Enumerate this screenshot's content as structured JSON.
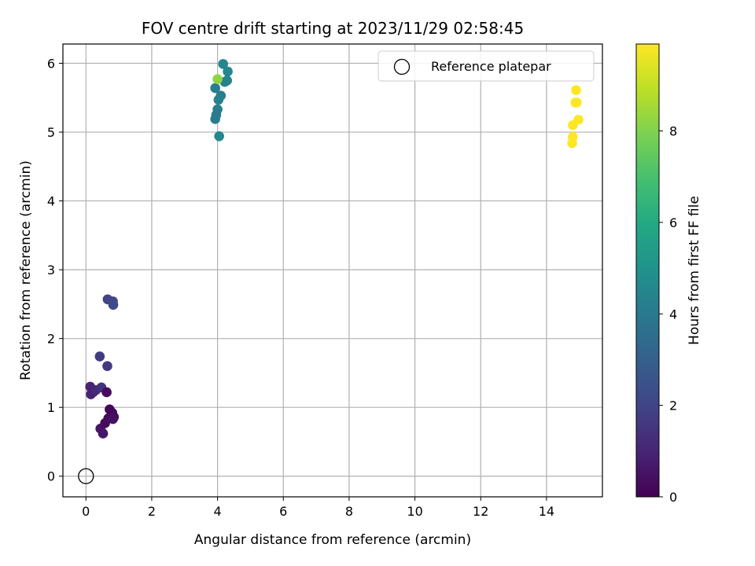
{
  "chart_data": {
    "type": "scatter",
    "title": "FOV centre drift starting at 2023/11/29 02:58:45",
    "xlabel": "Angular distance from reference (arcmin)",
    "ylabel": "Rotation from reference (arcmin)",
    "xlim": [
      -0.7,
      15.7
    ],
    "ylim": [
      -0.3,
      6.28
    ],
    "xticks": [
      0,
      2,
      4,
      6,
      8,
      10,
      12,
      14
    ],
    "yticks": [
      0,
      1,
      2,
      3,
      4,
      5,
      6
    ],
    "grid": true,
    "legend": {
      "placement": "top-right",
      "entries": [
        "Reference platepar"
      ]
    },
    "reference_point": {
      "x": 0,
      "y": 0,
      "marker": "hollow-circle",
      "edge_color": "#000000"
    },
    "colorbar": {
      "label": "Hours from first FF file",
      "min": 0,
      "max": 9.9,
      "ticks": [
        0,
        2,
        4,
        6,
        8
      ],
      "colormap": "viridis"
    },
    "points": [
      {
        "x": 0.13,
        "y": 1.3,
        "c": 1.0
      },
      {
        "x": 0.15,
        "y": 1.19,
        "c": 1.0
      },
      {
        "x": 0.22,
        "y": 1.22,
        "c": 0.9
      },
      {
        "x": 0.3,
        "y": 1.25,
        "c": 1.1
      },
      {
        "x": 0.47,
        "y": 1.29,
        "c": 1.4
      },
      {
        "x": 0.42,
        "y": 1.74,
        "c": 1.7
      },
      {
        "x": 0.65,
        "y": 1.6,
        "c": 1.6
      },
      {
        "x": 0.63,
        "y": 1.22,
        "c": 0.3
      },
      {
        "x": 0.44,
        "y": 0.69,
        "c": 0.5
      },
      {
        "x": 0.52,
        "y": 0.62,
        "c": 0.6
      },
      {
        "x": 0.58,
        "y": 0.77,
        "c": 0.3
      },
      {
        "x": 0.68,
        "y": 0.84,
        "c": 0.25
      },
      {
        "x": 0.72,
        "y": 0.97,
        "c": 0.2
      },
      {
        "x": 0.8,
        "y": 0.92,
        "c": 0.15
      },
      {
        "x": 0.85,
        "y": 0.86,
        "c": 0.3
      },
      {
        "x": 0.82,
        "y": 0.83,
        "c": 0.4
      },
      {
        "x": 0.66,
        "y": 2.57,
        "c": 2.0
      },
      {
        "x": 0.82,
        "y": 2.54,
        "c": 2.1
      },
      {
        "x": 0.83,
        "y": 2.49,
        "c": 2.2
      },
      {
        "x": 4.17,
        "y": 5.99,
        "c": 4.5
      },
      {
        "x": 4.31,
        "y": 5.88,
        "c": 4.6
      },
      {
        "x": 4.22,
        "y": 5.73,
        "c": 4.3
      },
      {
        "x": 4.29,
        "y": 5.75,
        "c": 4.4
      },
      {
        "x": 3.93,
        "y": 5.64,
        "c": 4.2
      },
      {
        "x": 4.1,
        "y": 5.53,
        "c": 4.1
      },
      {
        "x": 4.03,
        "y": 5.47,
        "c": 4.4
      },
      {
        "x": 4.0,
        "y": 5.33,
        "c": 4.2
      },
      {
        "x": 3.96,
        "y": 5.25,
        "c": 4.0
      },
      {
        "x": 3.93,
        "y": 5.19,
        "c": 4.1
      },
      {
        "x": 4.05,
        "y": 4.94,
        "c": 4.6
      },
      {
        "x": 4.0,
        "y": 5.77,
        "c": 8.2
      },
      {
        "x": 14.9,
        "y": 5.61,
        "c": 9.9
      },
      {
        "x": 14.92,
        "y": 5.43,
        "c": 9.9
      },
      {
        "x": 14.88,
        "y": 5.43,
        "c": 9.9
      },
      {
        "x": 14.97,
        "y": 5.18,
        "c": 9.9
      },
      {
        "x": 14.8,
        "y": 5.1,
        "c": 9.9
      },
      {
        "x": 14.8,
        "y": 4.93,
        "c": 9.9
      },
      {
        "x": 14.78,
        "y": 4.84,
        "c": 9.9
      }
    ]
  }
}
